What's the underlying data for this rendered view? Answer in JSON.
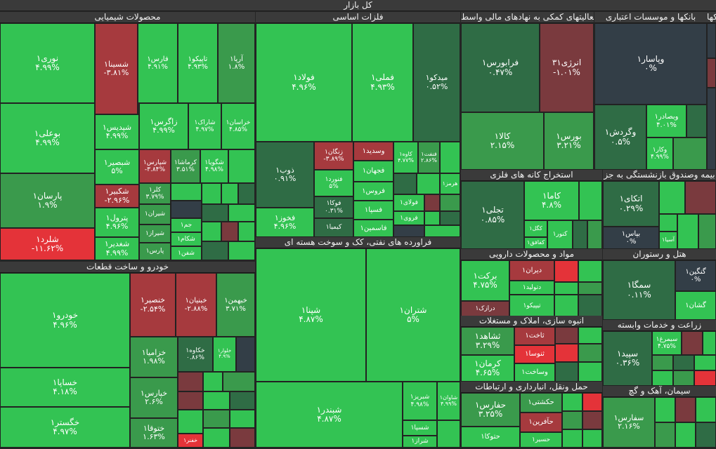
{
  "title": "کل بازار",
  "colors": {
    "strong_up": "#33c353",
    "up": "#3a9a4c",
    "weak_up": "#2f6c45",
    "neutral": "#333e47",
    "weak_down": "#7a3a3e",
    "down": "#a63a3e",
    "strong_down": "#e43339"
  },
  "chart_data": {
    "type": "treemap",
    "sectors": [
      {
        "name": "محصولات شیمیایی",
        "tiles": [
          {
            "name": "نوری1",
            "pct": "4.99%"
          },
          {
            "name": "بوعلی1",
            "pct": "4.99%"
          },
          {
            "name": "پارسان1",
            "pct": "1.9%"
          },
          {
            "name": "شلرد1",
            "pct": "-11.62%"
          },
          {
            "name": "شسینا1",
            "pct": "-3.81%"
          },
          {
            "name": "فارس1",
            "pct": "4.91%"
          },
          {
            "name": "تاپیکو1",
            "pct": "4.93%"
          },
          {
            "name": "آریا1",
            "pct": "1.8%"
          },
          {
            "name": "شپدیس1",
            "pct": "4.99%"
          },
          {
            "name": "زاگرس1",
            "pct": "4.99%"
          },
          {
            "name": "شاراک1",
            "pct": "4.97%"
          },
          {
            "name": "خراسان1",
            "pct": "4.85%"
          },
          {
            "name": "شبصیر1",
            "pct": "5%"
          },
          {
            "name": "شپارس1",
            "pct": "-3.84%"
          },
          {
            "name": "کرماشا1",
            "pct": "3.51%"
          },
          {
            "name": "شگویا1",
            "pct": "4.98%"
          },
          {
            "name": "شکبیر1",
            "pct": "-2.96%"
          },
          {
            "name": "کلر1",
            "pct": "3.79%"
          },
          {
            "name": "پترول1",
            "pct": "4.96%"
          },
          {
            "name": "شیران1",
            "pct": ""
          },
          {
            "name": "شغدیر1",
            "pct": "4.99%"
          },
          {
            "name": "شیراز1",
            "pct": ""
          },
          {
            "name": "جم1",
            "pct": ""
          },
          {
            "name": "پارس1",
            "pct": ""
          },
          {
            "name": "شکام1",
            "pct": ""
          },
          {
            "name": "شفن1",
            "pct": ""
          }
        ]
      },
      {
        "name": "فلزات اساسی",
        "tiles": [
          {
            "name": "فولاد1",
            "pct": "4.96%"
          },
          {
            "name": "فملی1",
            "pct": "4.93%"
          },
          {
            "name": "میدکو1",
            "pct": "0.52%"
          },
          {
            "name": "ذوب1",
            "pct": "0.91%"
          },
          {
            "name": "فخوز1",
            "pct": "4.96%"
          },
          {
            "name": "زنگان1",
            "pct": "-3.89%"
          },
          {
            "name": "فنورد1",
            "pct": "5%"
          },
          {
            "name": "فوکا1",
            "pct": "0.31%"
          },
          {
            "name": "کیمیا1",
            "pct": ""
          },
          {
            "name": "وسدید1",
            "pct": ""
          },
          {
            "name": "فجهان1",
            "pct": ""
          },
          {
            "name": "فروس1",
            "pct": ""
          },
          {
            "name": "فسپا1",
            "pct": ""
          },
          {
            "name": "فاسمین1",
            "pct": ""
          },
          {
            "name": "کاوه1",
            "pct": "4.77%"
          },
          {
            "name": "فنفت1",
            "pct": "2.86%"
          },
          {
            "name": "هرمز1",
            "pct": ""
          },
          {
            "name": "فولای1",
            "pct": ""
          },
          {
            "name": "فروی1",
            "pct": ""
          }
        ]
      },
      {
        "name": "فعالیتهای کمکی به نهادهای مالی واسط",
        "tiles": [
          {
            "name": "فرابورس1",
            "pct": "0.47%"
          },
          {
            "name": "انرژی31",
            "pct": "-1.01%"
          },
          {
            "name": "کالا1",
            "pct": "2.15%"
          },
          {
            "name": "بورس1",
            "pct": "3.21%"
          }
        ]
      },
      {
        "name": "بانکها و موسسات اعتباری",
        "tiles": [
          {
            "name": "وپاسار1",
            "pct": "0%"
          },
          {
            "name": "وگردش1",
            "pct": "0.5%"
          },
          {
            "name": "وبصادر1",
            "pct": "4.01%"
          },
          {
            "name": "وکار1",
            "pct": "4.99%"
          }
        ]
      },
      {
        "name": "بانکها",
        "tiles": []
      },
      {
        "name": "استخراج کانه های فلزی",
        "tiles": [
          {
            "name": "تجلی1",
            "pct": "0.85%"
          },
          {
            "name": "کاما1",
            "pct": "4.8%"
          },
          {
            "name": "کگل1",
            "pct": ""
          },
          {
            "name": "کفافق1",
            "pct": ""
          },
          {
            "name": "کنور1",
            "pct": ""
          }
        ]
      },
      {
        "name": "بیمه وصندوق بازنشستگی به جز",
        "tiles": [
          {
            "name": "اتکای1",
            "pct": "0.29%"
          },
          {
            "name": "بپاس1",
            "pct": "0%"
          },
          {
            "name": "آسیا1",
            "pct": ""
          }
        ]
      },
      {
        "name": "خودرو و ساخت قطعات",
        "tiles": [
          {
            "name": "خودرو1",
            "pct": "4.96%"
          },
          {
            "name": "خساپا1",
            "pct": "4.18%"
          },
          {
            "name": "خگستر1",
            "pct": "4.97%"
          },
          {
            "name": "خنصیر1",
            "pct": "-2.54%"
          },
          {
            "name": "خبنیان1",
            "pct": "-2.88%"
          },
          {
            "name": "خبهمن1",
            "pct": "3.71%"
          },
          {
            "name": "خزامیا1",
            "pct": "1.98%"
          },
          {
            "name": "خکاوه1",
            "pct": "0.86%"
          },
          {
            "name": "خلوار1",
            "pct": "4.9%"
          },
          {
            "name": "خپارس1",
            "pct": "2.6%"
          },
          {
            "name": "ختوقا1",
            "pct": "1.63%"
          },
          {
            "name": "خفنر1",
            "pct": ""
          }
        ]
      },
      {
        "name": "فراورده های نفتی، کک و سوخت هسته ای",
        "tiles": [
          {
            "name": "شپنا1",
            "pct": "4.87%"
          },
          {
            "name": "شتران1",
            "pct": "5%"
          },
          {
            "name": "شبندر1",
            "pct": "4.87%"
          },
          {
            "name": "شبریز1",
            "pct": "4.98%"
          },
          {
            "name": "شاوان1",
            "pct": "4.99%"
          },
          {
            "name": "شسپا1",
            "pct": ""
          },
          {
            "name": "شراز1",
            "pct": ""
          }
        ]
      },
      {
        "name": "مواد و محصولات دارویی",
        "tiles": [
          {
            "name": "برکت1",
            "pct": "4.75%"
          },
          {
            "name": "دیران1",
            "pct": ""
          },
          {
            "name": "دتولید1",
            "pct": ""
          },
          {
            "name": "درازک1",
            "pct": ""
          },
          {
            "name": "تیپیکو1",
            "pct": ""
          }
        ]
      },
      {
        "name": "هتل و رستوران",
        "tiles": [
          {
            "name": "سمگا1",
            "pct": "0.11%"
          },
          {
            "name": "گنگین1",
            "pct": "0%"
          },
          {
            "name": "گشان1",
            "pct": ""
          }
        ]
      },
      {
        "name": "انبوه سازی، املاک و مستغلات",
        "tiles": [
          {
            "name": "ثشاهد1",
            "pct": "3.29%"
          },
          {
            "name": "کرمان1",
            "pct": "4.65%"
          },
          {
            "name": "ثاخت1",
            "pct": ""
          },
          {
            "name": "ثنوسا1",
            "pct": ""
          },
          {
            "name": "وساخت1",
            "pct": ""
          }
        ]
      },
      {
        "name": "زراعت و خدمات وابسته",
        "tiles": [
          {
            "name": "سپید1",
            "pct": "0.36%"
          },
          {
            "name": "سیمرغ1",
            "pct": "4.75%"
          }
        ]
      },
      {
        "name": "حمل ونقل، انبارداری و ارتباطات",
        "tiles": [
          {
            "name": "حفارس1",
            "pct": "3.25%"
          },
          {
            "name": "حکشتی1",
            "pct": ""
          },
          {
            "name": "حتوکا1",
            "pct": ""
          },
          {
            "name": "حآفرین1",
            "pct": ""
          },
          {
            "name": "حسیر1",
            "pct": ""
          }
        ]
      },
      {
        "name": "سیمان، آهک و گچ",
        "tiles": [
          {
            "name": "سفارس1",
            "pct": "2.16%"
          }
        ]
      }
    ]
  }
}
